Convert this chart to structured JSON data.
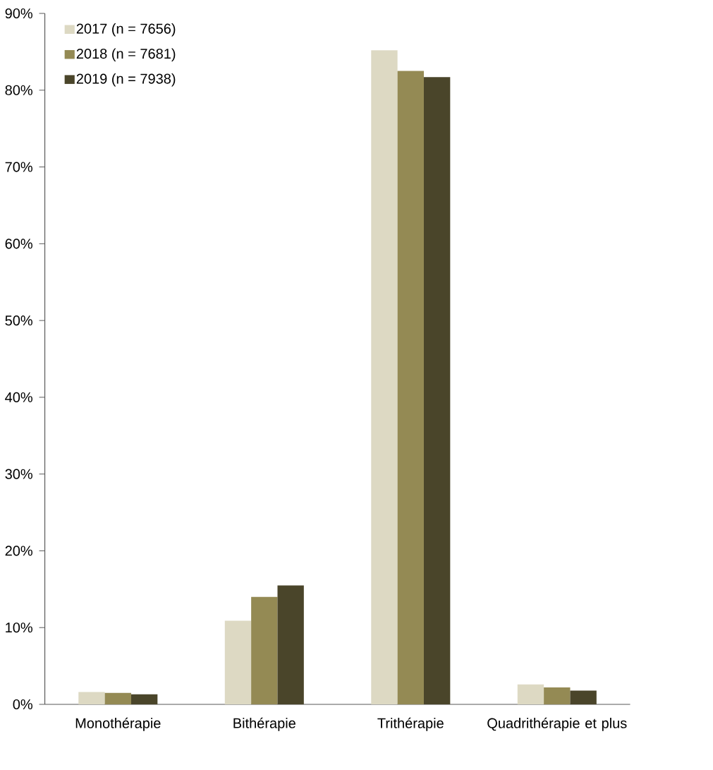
{
  "chart_data": {
    "type": "bar",
    "categories": [
      "Monothérapie",
      "Bithérapie",
      "Trithérapie",
      "Quadrithérapie et plus"
    ],
    "series": [
      {
        "name": "2017 (n = 7656)",
        "color": "#ddd9c3",
        "values": [
          1.6,
          10.9,
          85.2,
          2.6
        ]
      },
      {
        "name": "2018 (n = 7681)",
        "color": "#948a54",
        "values": [
          1.5,
          14.0,
          82.5,
          2.2
        ]
      },
      {
        "name": "2019 (n = 7938)",
        "color": "#4a452a",
        "values": [
          1.3,
          15.5,
          81.7,
          1.8
        ]
      }
    ],
    "ylim": [
      0,
      90
    ],
    "yticks": [
      {
        "value": 0,
        "label": "0%"
      },
      {
        "value": 10,
        "label": "10%"
      },
      {
        "value": 20,
        "label": "20%"
      },
      {
        "value": 30,
        "label": "30%"
      },
      {
        "value": 40,
        "label": "40%"
      },
      {
        "value": 50,
        "label": "50%"
      },
      {
        "value": 60,
        "label": "60%"
      },
      {
        "value": 70,
        "label": "70%"
      },
      {
        "value": 80,
        "label": "80%"
      },
      {
        "value": 90,
        "label": "90%"
      }
    ],
    "grid": false,
    "legend": "top left"
  }
}
